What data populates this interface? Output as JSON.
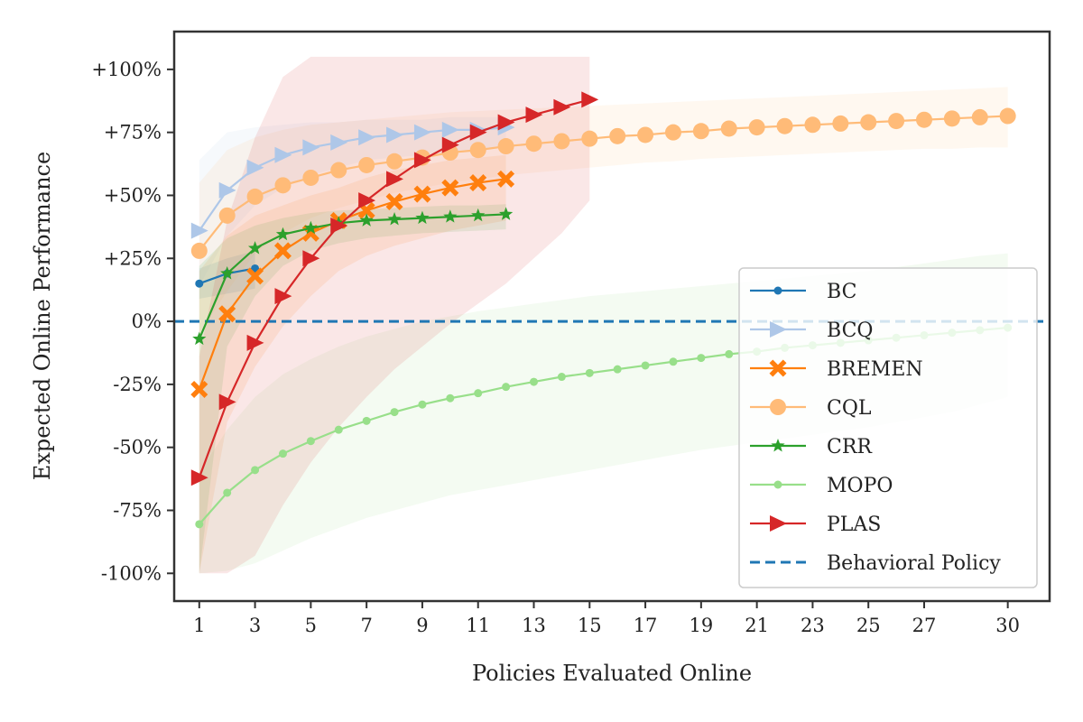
{
  "chart_data": {
    "type": "line",
    "title": "",
    "xlabel": "Policies Evaluated Online",
    "ylabel": "Expected Online Performance",
    "xlim": [
      0.1,
      31.5
    ],
    "ylim": [
      -111,
      115
    ],
    "xticks": [
      1,
      3,
      5,
      7,
      9,
      11,
      13,
      15,
      17,
      19,
      21,
      23,
      25,
      27,
      30
    ],
    "yticks": [
      {
        "value": 100,
        "label": "+100%"
      },
      {
        "value": 75,
        "label": "+75%"
      },
      {
        "value": 50,
        "label": "+50%"
      },
      {
        "value": 25,
        "label": "+25%"
      },
      {
        "value": 0,
        "label": "0%"
      },
      {
        "value": -25,
        "label": "-25%"
      },
      {
        "value": -50,
        "label": "-50%"
      },
      {
        "value": -75,
        "label": "-75%"
      },
      {
        "value": -100,
        "label": "-100%"
      }
    ],
    "grid": false,
    "legend_position": "lower-right",
    "baseline": {
      "name": "Behavioral Policy",
      "value": 0,
      "color": "#1f77b4",
      "style": "dashed"
    },
    "series": [
      {
        "name": "BC",
        "color": "#1f77b4",
        "marker": "circle-small",
        "x": [
          1,
          2,
          3
        ],
        "y": [
          15,
          19,
          21
        ],
        "band_lower": [
          9,
          11,
          13
        ],
        "band_upper": [
          21,
          25,
          28
        ]
      },
      {
        "name": "BCQ",
        "color": "#aec7e8",
        "marker": "triangle-right",
        "x": [
          1,
          2,
          3,
          4,
          5,
          6,
          7,
          8,
          9,
          10,
          11,
          12
        ],
        "y": [
          36,
          52,
          61,
          66,
          69,
          71,
          73,
          74,
          75,
          76,
          76,
          77
        ],
        "band_lower": [
          14,
          34,
          46,
          53,
          58,
          61,
          64,
          65,
          66,
          67,
          68,
          69
        ],
        "band_upper": [
          64,
          75,
          77,
          78,
          79,
          79,
          80,
          80,
          80,
          81,
          81,
          81
        ]
      },
      {
        "name": "BREMEN",
        "color": "#ff7f0e",
        "marker": "x-filled",
        "x": [
          1,
          2,
          3,
          4,
          5,
          6,
          7,
          8,
          9,
          10,
          11,
          12
        ],
        "y": [
          -27,
          3,
          18,
          28,
          35,
          40,
          44,
          47.5,
          50.5,
          53,
          55,
          56.5
        ],
        "band_lower": [
          -100,
          -40,
          -18,
          -2,
          10,
          20,
          26,
          30,
          33,
          36,
          38,
          40
        ],
        "band_upper": [
          20,
          34,
          42,
          46,
          50,
          53,
          57,
          60,
          62,
          64,
          65,
          66
        ]
      },
      {
        "name": "CQL",
        "color": "#ffbb78",
        "marker": "circle-large",
        "x": [
          1,
          2,
          3,
          4,
          5,
          6,
          7,
          8,
          9,
          10,
          11,
          12,
          13,
          14,
          15,
          16,
          17,
          18,
          19,
          20,
          21,
          22,
          23,
          24,
          25,
          26,
          27,
          28,
          29,
          30
        ],
        "y": [
          28,
          42,
          49.5,
          54,
          57,
          60,
          62,
          63.5,
          65,
          67,
          68,
          69.5,
          70.5,
          71.5,
          72.5,
          73.5,
          74,
          75,
          75.5,
          76.5,
          77,
          77.5,
          78,
          78.5,
          79,
          79.5,
          80,
          80.5,
          81,
          81.5
        ],
        "band_lower": [
          -5,
          12,
          27,
          35,
          41,
          45,
          48,
          51,
          53,
          55,
          56.5,
          58,
          59,
          60,
          61,
          62,
          63,
          63.5,
          64.5,
          65,
          65.5,
          66,
          66.5,
          67,
          67.5,
          68,
          68.5,
          68.5,
          69,
          69
        ],
        "band_upper": [
          55,
          68,
          73,
          76,
          78,
          79,
          80,
          81,
          82,
          83,
          83.5,
          84,
          84.5,
          85,
          85.5,
          86,
          86.5,
          87,
          87.5,
          88,
          88.5,
          89,
          89.5,
          90,
          90.5,
          91,
          91.5,
          92,
          92.5,
          93
        ]
      },
      {
        "name": "CRR",
        "color": "#2ca02c",
        "marker": "star",
        "x": [
          1,
          2,
          3,
          4,
          5,
          6,
          7,
          8,
          9,
          10,
          11,
          12
        ],
        "y": [
          -7,
          19,
          29,
          34.5,
          37,
          39,
          40,
          40.5,
          41,
          41.5,
          42,
          42.5
        ],
        "band_lower": [
          -100,
          -10,
          10,
          22,
          28,
          31,
          33,
          34,
          35,
          35.5,
          36,
          36.5
        ],
        "band_upper": [
          22,
          33,
          38,
          41,
          43,
          44,
          44.5,
          45,
          45.5,
          46,
          46,
          46.5
        ]
      },
      {
        "name": "MOPO",
        "color": "#98df8a",
        "marker": "circle-small",
        "x": [
          1,
          2,
          3,
          4,
          5,
          6,
          7,
          8,
          9,
          10,
          11,
          12,
          13,
          14,
          15,
          16,
          17,
          18,
          19,
          20,
          21,
          22,
          23,
          24,
          25,
          26,
          27,
          28,
          29,
          30
        ],
        "y": [
          -80.5,
          -68,
          -59,
          -52.5,
          -47.5,
          -43,
          -39.5,
          -36,
          -33,
          -30.5,
          -28.5,
          -26,
          -24,
          -22,
          -20.5,
          -19,
          -17.5,
          -16,
          -14.5,
          -13,
          -12,
          -10.5,
          -9.5,
          -8.5,
          -7.5,
          -6.5,
          -5.5,
          -4.5,
          -3.5,
          -2.5
        ],
        "band_lower": [
          -100,
          -99,
          -96,
          -91,
          -86,
          -82,
          -78,
          -75,
          -72,
          -69,
          -67,
          -65,
          -63,
          -61,
          -59,
          -57,
          -55,
          -53,
          -51,
          -49.5,
          -48,
          -46.5,
          -45,
          -43.5,
          -42,
          -40,
          -38,
          -36,
          -33,
          -30
        ],
        "band_upper": [
          -60,
          -43,
          -30,
          -21,
          -15,
          -10,
          -6,
          -3,
          0,
          2,
          4,
          5.5,
          7,
          8.5,
          10,
          11,
          12,
          13,
          14,
          15,
          16,
          17,
          18,
          19,
          20,
          21.5,
          23,
          24.5,
          26,
          27
        ]
      },
      {
        "name": "PLAS",
        "color": "#d62728",
        "marker": "triangle-right",
        "x": [
          1,
          2,
          3,
          4,
          5,
          6,
          7,
          8,
          9,
          10,
          11,
          12,
          13,
          14,
          15
        ],
        "y": [
          -62,
          -32,
          -8.5,
          10,
          25,
          38,
          48,
          56.5,
          64,
          70,
          75,
          79,
          82,
          85,
          88
        ],
        "band_lower": [
          -100,
          -100,
          -93,
          -73,
          -56,
          -42,
          -30,
          -19,
          -10,
          -1,
          7,
          15,
          25,
          35,
          48
        ],
        "band_upper": [
          -14,
          40,
          73,
          97,
          105,
          105,
          105,
          105,
          105,
          105,
          105,
          105,
          105,
          105,
          105
        ]
      }
    ]
  }
}
